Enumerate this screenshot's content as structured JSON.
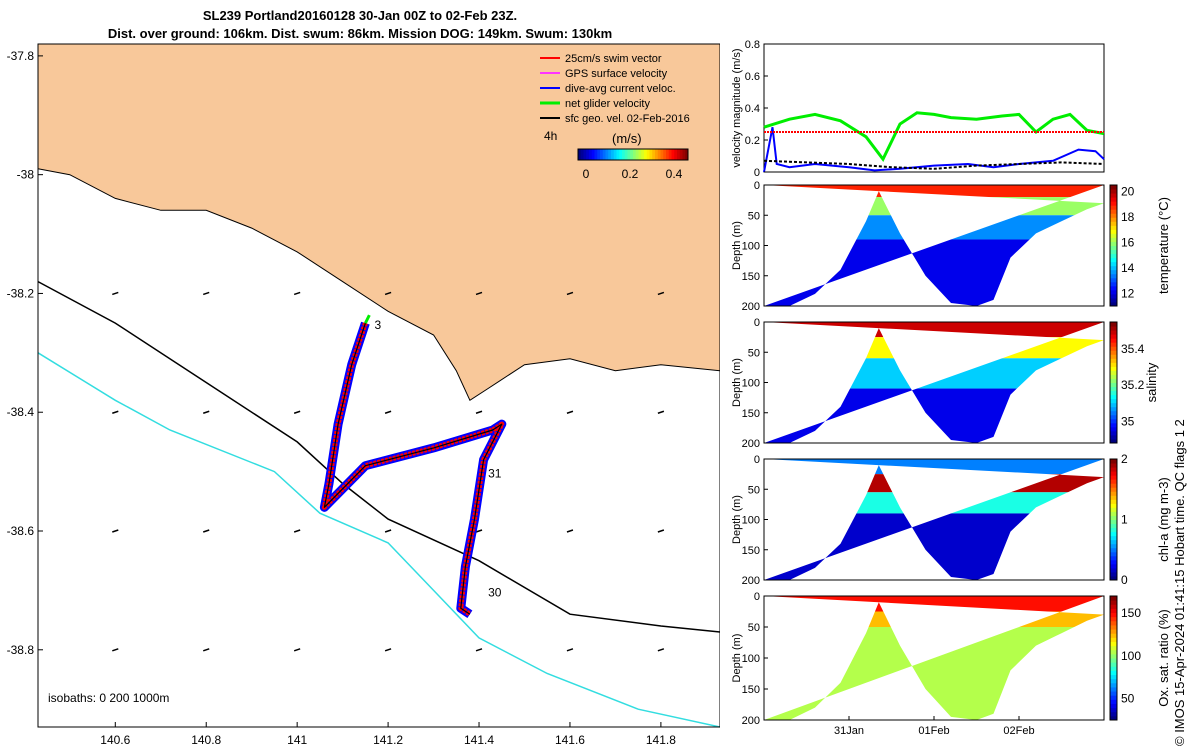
{
  "header": {
    "title": "SL239 Portland20160128 30-Jan 00Z to 02-Feb 23Z.",
    "subtitle": "Dist. over ground: 106km. Dist. swum: 86km. Mission DOG: 149km. Swum: 130km"
  },
  "credit": "© IMOS 15-Apr-2024 01:41:15 Hobart time. QC flags 1  2",
  "colors": {
    "land": "#f8c89a",
    "coast": "#000000",
    "isobath_200": "#000000",
    "isobath_1000": "#33dde0",
    "swim_vector": "#ff0000",
    "gps_velocity": "#ff33ff",
    "dive_avg_current": "#0000ff",
    "net_velocity": "#00ee00",
    "sfc_geo_velocity": "#000000"
  },
  "chart_data": [
    {
      "type": "map",
      "xlim": [
        140.43,
        141.93
      ],
      "ylim": [
        -38.93,
        -37.78
      ],
      "x_ticks": [
        "140.6",
        "140.8",
        "141",
        "141.2",
        "141.4",
        "141.6",
        "141.8"
      ],
      "x_tick_values": [
        140.6,
        140.8,
        141.0,
        141.2,
        141.4,
        141.6,
        141.8
      ],
      "y_ticks": [
        "-37.8",
        "-38",
        "-38.2",
        "-38.4",
        "-38.6",
        "-38.8"
      ],
      "y_tick_values": [
        -37.8,
        -38.0,
        -38.2,
        -38.4,
        -38.6,
        -38.8
      ],
      "legend": {
        "placement": "top-right",
        "items": [
          {
            "key": "swim_vector",
            "label": "25cm/s swim vector"
          },
          {
            "key": "gps_velocity",
            "label": "GPS surface velocity"
          },
          {
            "key": "dive_avg_current",
            "label": "dive-avg current veloc."
          },
          {
            "key": "net_velocity",
            "label": "net glider velocity"
          },
          {
            "key": "sfc_geo_velocity",
            "label": "sfc geo. vel. 02-Feb-2016"
          }
        ],
        "time_label": "4h",
        "units": "(m/s)",
        "colorbar_ticks": [
          "0",
          "0.2",
          "0.4"
        ],
        "colorbar_tick_values": [
          0,
          0.2,
          0.4
        ],
        "colorbar_range": [
          0,
          0.5
        ]
      },
      "isobath_label": "isobaths: 0   200  1000m",
      "isobaths": [
        {
          "depth": 200,
          "points": [
            [
              140.43,
              -38.18
            ],
            [
              140.6,
              -38.25
            ],
            [
              140.8,
              -38.35
            ],
            [
              141.0,
              -38.45
            ],
            [
              141.1,
              -38.52
            ],
            [
              141.2,
              -38.58
            ],
            [
              141.4,
              -38.65
            ],
            [
              141.6,
              -38.74
            ],
            [
              141.8,
              -38.76
            ],
            [
              141.93,
              -38.77
            ]
          ]
        },
        {
          "depth": 1000,
          "points": [
            [
              140.43,
              -38.3
            ],
            [
              140.6,
              -38.38
            ],
            [
              140.72,
              -38.43
            ],
            [
              140.95,
              -38.5
            ],
            [
              141.05,
              -38.57
            ],
            [
              141.2,
              -38.62
            ],
            [
              141.3,
              -38.7
            ],
            [
              141.4,
              -38.78
            ],
            [
              141.55,
              -38.84
            ],
            [
              141.75,
              -38.9
            ],
            [
              141.93,
              -38.93
            ]
          ]
        }
      ],
      "coastline": [
        [
          140.43,
          -37.99
        ],
        [
          140.5,
          -38.0
        ],
        [
          140.6,
          -38.04
        ],
        [
          140.7,
          -38.06
        ],
        [
          140.8,
          -38.06
        ],
        [
          140.9,
          -38.09
        ],
        [
          141.0,
          -38.13
        ],
        [
          141.1,
          -38.18
        ],
        [
          141.2,
          -38.23
        ],
        [
          141.3,
          -38.27
        ],
        [
          141.35,
          -38.33
        ],
        [
          141.38,
          -38.38
        ],
        [
          141.42,
          -38.36
        ],
        [
          141.5,
          -38.32
        ],
        [
          141.6,
          -38.31
        ],
        [
          141.7,
          -38.33
        ],
        [
          141.8,
          -38.32
        ],
        [
          141.93,
          -38.33
        ]
      ],
      "track": [
        [
          141.15,
          -38.25
        ],
        [
          141.12,
          -38.32
        ],
        [
          141.09,
          -38.42
        ],
        [
          141.07,
          -38.52
        ],
        [
          141.06,
          -38.56
        ],
        [
          141.15,
          -38.49
        ],
        [
          141.3,
          -38.46
        ],
        [
          141.43,
          -38.43
        ],
        [
          141.45,
          -38.42
        ],
        [
          141.41,
          -38.48
        ],
        [
          141.39,
          -38.58
        ],
        [
          141.37,
          -38.66
        ],
        [
          141.36,
          -38.73
        ],
        [
          141.38,
          -38.74
        ]
      ],
      "day_labels": [
        {
          "label": "31",
          "lon": 141.42,
          "lat": -38.51
        },
        {
          "label": "30",
          "lon": 141.42,
          "lat": -38.71
        },
        {
          "label": "3",
          "lon": 141.17,
          "lat": -38.26
        }
      ],
      "geo_vector_grid_lons": [
        140.6,
        140.8,
        141.0,
        141.2,
        141.4,
        141.6,
        141.8
      ],
      "geo_vector_grid_lats": [
        -38.2,
        -38.4,
        -38.6,
        -38.8
      ]
    },
    {
      "type": "line",
      "ylabel": "velocity magnitude (m/s)",
      "ylim": [
        0,
        0.8
      ],
      "y_ticks": [
        "0",
        "0.2",
        "0.4",
        "0.6",
        "0.8"
      ],
      "y_tick_values": [
        0,
        0.2,
        0.4,
        0.6,
        0.8
      ],
      "x_range_days": [
        30.0,
        34.0
      ],
      "series": [
        {
          "key": "net_velocity",
          "x": [
            30.0,
            30.3,
            30.6,
            30.9,
            31.2,
            31.4,
            31.6,
            31.8,
            32.0,
            32.2,
            32.5,
            32.8,
            33.0,
            33.2,
            33.4,
            33.6,
            33.8,
            34.0
          ],
          "values": [
            0.28,
            0.33,
            0.36,
            0.32,
            0.22,
            0.08,
            0.3,
            0.37,
            0.36,
            0.34,
            0.33,
            0.35,
            0.36,
            0.25,
            0.33,
            0.36,
            0.26,
            0.24
          ]
        },
        {
          "key": "dive_avg_current",
          "x": [
            30.0,
            30.1,
            30.15,
            30.3,
            30.6,
            31.0,
            31.3,
            31.6,
            32.0,
            32.4,
            32.7,
            33.0,
            33.4,
            33.7,
            33.9,
            34.0
          ],
          "values": [
            0.0,
            0.28,
            0.05,
            0.03,
            0.05,
            0.03,
            0.01,
            0.02,
            0.04,
            0.05,
            0.03,
            0.05,
            0.07,
            0.14,
            0.13,
            0.08
          ]
        },
        {
          "key": "sfc_geo_velocity",
          "x": [
            30.0,
            30.5,
            31.0,
            31.5,
            32.0,
            32.5,
            33.0,
            33.5,
            34.0
          ],
          "values": [
            0.07,
            0.06,
            0.05,
            0.03,
            0.02,
            0.04,
            0.05,
            0.06,
            0.05
          ]
        },
        {
          "key": "swim_vector",
          "x": [
            30.0,
            34.0
          ],
          "values": [
            0.25,
            0.25
          ]
        }
      ]
    },
    {
      "type": "heatmap",
      "ylabel": "Depth (m)",
      "colorbar_label": "temperature (°C)",
      "y_ticks": [
        "0",
        "50",
        "100",
        "150",
        "200"
      ],
      "y_tick_values": [
        0,
        50,
        100,
        150,
        200
      ],
      "colorbar_ticks": [
        "12",
        "14",
        "16",
        "18",
        "20"
      ],
      "colorbar_tick_values": [
        12,
        14,
        16,
        18,
        20
      ],
      "colorbar_range": [
        11,
        20.5
      ],
      "bottom_profile_days": [
        30.0,
        30.3,
        30.6,
        30.9,
        31.2,
        31.35,
        31.6,
        31.9,
        32.2,
        32.5,
        32.7,
        32.9,
        33.2,
        33.5,
        33.8,
        34.0
      ],
      "bottom_profile_depths": [
        200,
        200,
        180,
        140,
        60,
        10,
        80,
        150,
        195,
        200,
        190,
        120,
        80,
        60,
        40,
        30
      ],
      "layers": [
        {
          "from": 0,
          "to": 20,
          "value": 19.0
        },
        {
          "from": 20,
          "to": 50,
          "value": 16.0
        },
        {
          "from": 50,
          "to": 90,
          "value": 13.5
        },
        {
          "from": 90,
          "to": 200,
          "value": 12.0
        }
      ]
    },
    {
      "type": "heatmap",
      "ylabel": "Depth (m)",
      "colorbar_label": "salinity",
      "y_ticks": [
        "0",
        "50",
        "100",
        "150",
        "200"
      ],
      "y_tick_values": [
        0,
        50,
        100,
        150,
        200
      ],
      "colorbar_ticks": [
        "35",
        "35.2",
        "35.4"
      ],
      "colorbar_tick_values": [
        35.0,
        35.2,
        35.4
      ],
      "colorbar_range": [
        34.88,
        35.55
      ],
      "bottom_profile_days": [
        30.0,
        30.3,
        30.6,
        30.9,
        31.2,
        31.35,
        31.6,
        31.9,
        32.2,
        32.5,
        32.7,
        32.9,
        33.2,
        33.5,
        33.8,
        34.0
      ],
      "bottom_profile_depths": [
        200,
        200,
        180,
        140,
        60,
        10,
        80,
        150,
        195,
        200,
        190,
        120,
        80,
        60,
        40,
        30
      ],
      "layers": [
        {
          "from": 0,
          "to": 25,
          "value": 35.5
        },
        {
          "from": 25,
          "to": 60,
          "value": 35.3
        },
        {
          "from": 60,
          "to": 110,
          "value": 35.1
        },
        {
          "from": 110,
          "to": 200,
          "value": 34.95
        }
      ]
    },
    {
      "type": "heatmap",
      "ylabel": "Depth (m)",
      "colorbar_label": "chl-a (mg m-3)",
      "y_ticks": [
        "0",
        "50",
        "100",
        "150",
        "200"
      ],
      "y_tick_values": [
        0,
        50,
        100,
        150,
        200
      ],
      "colorbar_ticks": [
        "0",
        "1",
        "2"
      ],
      "colorbar_tick_values": [
        0,
        1,
        2
      ],
      "colorbar_range": [
        0,
        2
      ],
      "bottom_profile_days": [
        30.0,
        30.3,
        30.6,
        30.9,
        31.2,
        31.35,
        31.6,
        31.9,
        32.2,
        32.5,
        32.7,
        32.9,
        33.2,
        33.5,
        33.8,
        34.0
      ],
      "bottom_profile_depths": [
        200,
        200,
        180,
        140,
        60,
        10,
        80,
        150,
        195,
        200,
        190,
        120,
        80,
        60,
        40,
        30
      ],
      "layers": [
        {
          "from": 0,
          "to": 25,
          "value": 0.5
        },
        {
          "from": 25,
          "to": 55,
          "value": 1.9
        },
        {
          "from": 55,
          "to": 90,
          "value": 0.8
        },
        {
          "from": 90,
          "to": 200,
          "value": 0.15
        }
      ]
    },
    {
      "type": "heatmap",
      "ylabel": "Depth (m)",
      "colorbar_label": "Ox. sat. ratio (%)",
      "y_ticks": [
        "0",
        "50",
        "100",
        "150",
        "200"
      ],
      "y_tick_values": [
        0,
        50,
        100,
        150,
        200
      ],
      "colorbar_ticks": [
        "50",
        "100",
        "150"
      ],
      "colorbar_tick_values": [
        50,
        100,
        150
      ],
      "colorbar_range": [
        25,
        170
      ],
      "x_ticks": [
        "31Jan",
        "01Feb",
        "02Feb"
      ],
      "x_tick_values": [
        31.0,
        32.0,
        33.0
      ],
      "x_range_days": [
        30.0,
        34.0
      ],
      "bottom_profile_days": [
        30.0,
        30.3,
        30.6,
        30.9,
        31.2,
        31.35,
        31.6,
        31.9,
        32.2,
        32.5,
        32.7,
        32.9,
        33.2,
        33.5,
        33.8,
        34.0
      ],
      "bottom_profile_depths": [
        200,
        200,
        180,
        140,
        60,
        10,
        80,
        150,
        195,
        200,
        190,
        120,
        80,
        60,
        40,
        30
      ],
      "layers": [
        {
          "from": 0,
          "to": 25,
          "value": 150
        },
        {
          "from": 25,
          "to": 50,
          "value": 125
        },
        {
          "from": 50,
          "to": 200,
          "value": 105
        }
      ]
    }
  ]
}
